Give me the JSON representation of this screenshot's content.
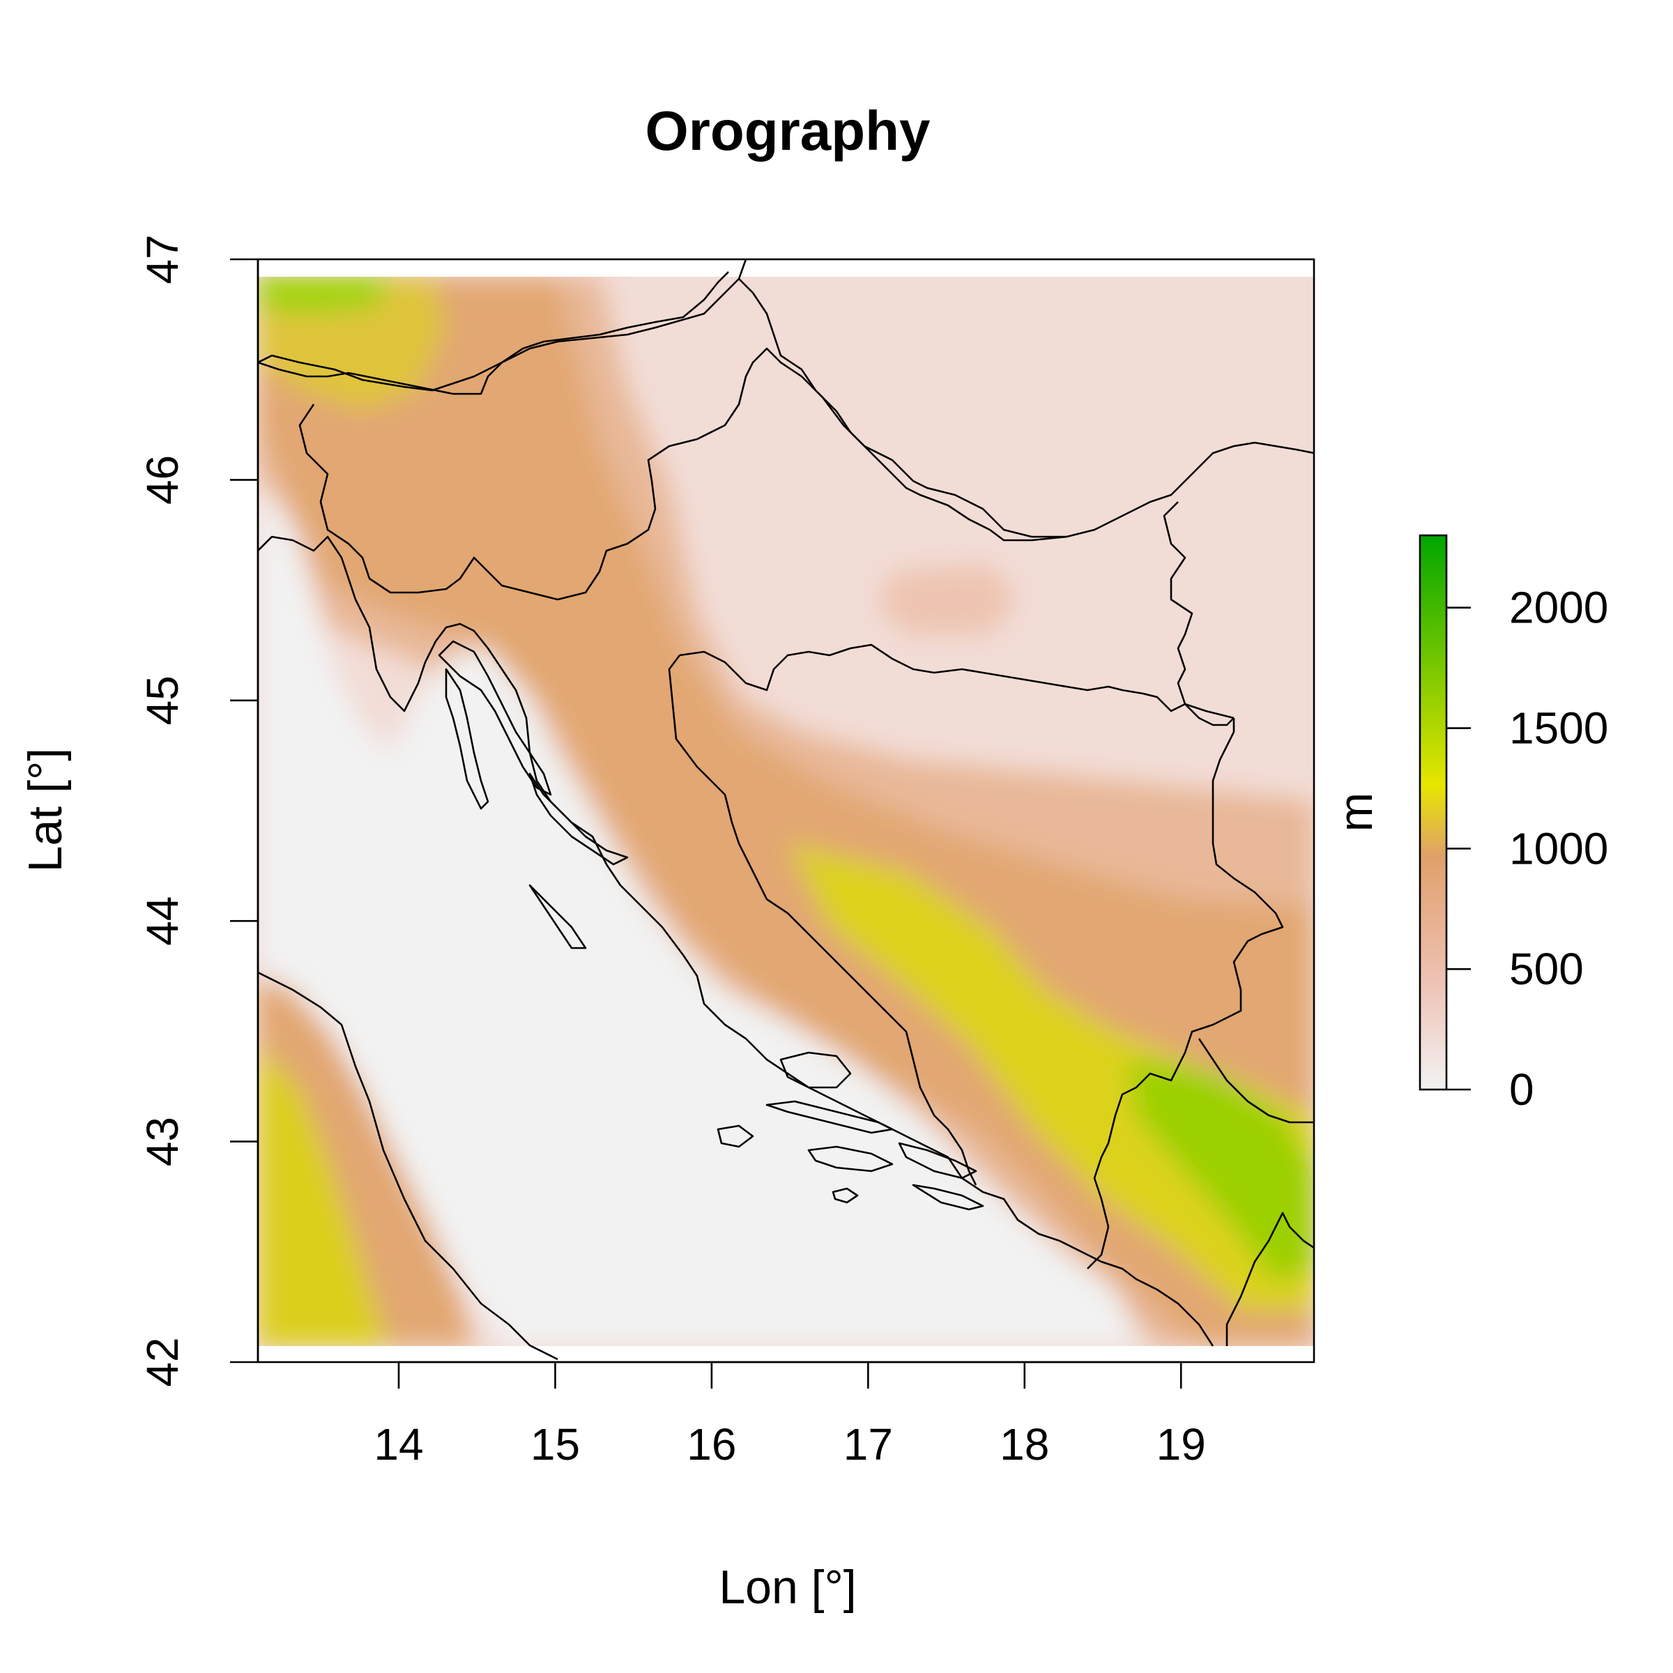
{
  "chart_data": {
    "type": "heatmap",
    "title": "Orography",
    "xlabel": "Lon [°]",
    "ylabel": "Lat [°]",
    "xlim": [
      13.1,
      19.85
    ],
    "ylim": [
      42.0,
      47.0
    ],
    "xticks": [
      14,
      15,
      16,
      17,
      18,
      19
    ],
    "yticks": [
      42,
      43,
      44,
      45,
      46,
      47
    ],
    "colorbar": {
      "label": "m",
      "range": [
        0,
        2300
      ],
      "ticks": [
        0,
        500,
        1000,
        1500,
        2000
      ],
      "colors": [
        "#f2f2f2",
        "#eec1b3",
        "#e0a06a",
        "#e6e600",
        "#00a600"
      ]
    },
    "grid": false,
    "legend": "right"
  }
}
